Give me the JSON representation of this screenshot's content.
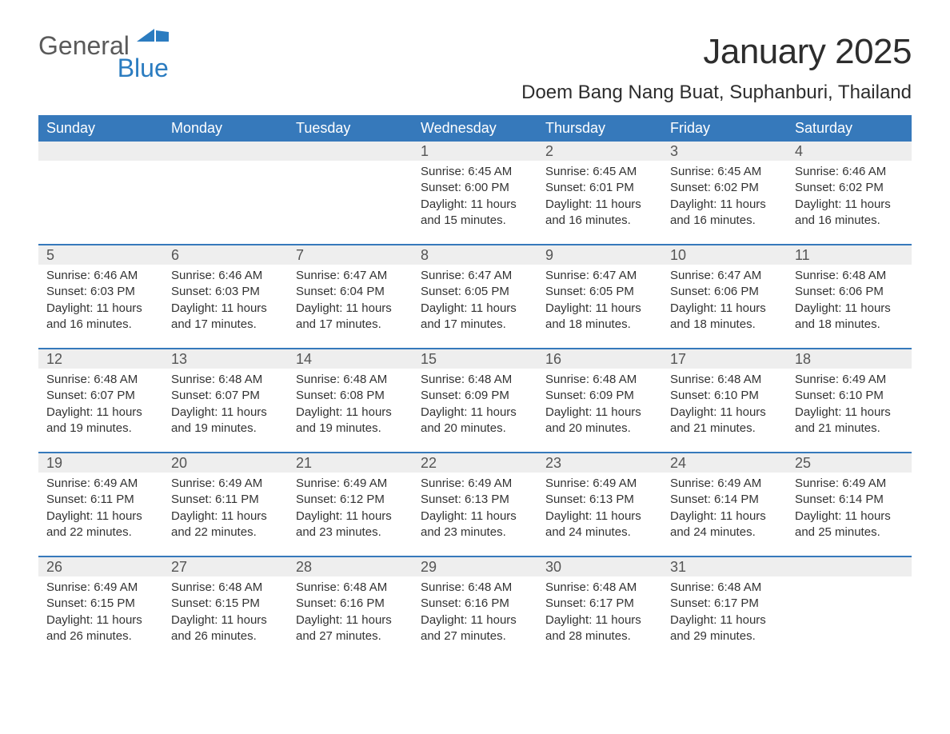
{
  "logo": {
    "word1": "General",
    "word2": "Blue",
    "accent_color": "#2b7cc0",
    "text_color": "#5a5a5a"
  },
  "title": "January 2025",
  "location": "Doem Bang Nang Buat, Suphanburi, Thailand",
  "colors": {
    "header_bg": "#3679bb",
    "header_text": "#ffffff",
    "daynum_bg": "#eeeeee",
    "week_border": "#3679bb",
    "body_text": "#333333",
    "daynum_text": "#555555",
    "background": "#ffffff"
  },
  "typography": {
    "title_fontsize": 44,
    "location_fontsize": 24,
    "dayhead_fontsize": 18,
    "daynum_fontsize": 18,
    "cell_fontsize": 15,
    "font_family": "Arial"
  },
  "layout": {
    "columns": 7,
    "rows": 5,
    "cell_min_height": 128
  },
  "day_headers": [
    "Sunday",
    "Monday",
    "Tuesday",
    "Wednesday",
    "Thursday",
    "Friday",
    "Saturday"
  ],
  "weeks": [
    [
      null,
      null,
      null,
      {
        "n": "1",
        "sunrise": "6:45 AM",
        "sunset": "6:00 PM",
        "daylight": "11 hours and 15 minutes."
      },
      {
        "n": "2",
        "sunrise": "6:45 AM",
        "sunset": "6:01 PM",
        "daylight": "11 hours and 16 minutes."
      },
      {
        "n": "3",
        "sunrise": "6:45 AM",
        "sunset": "6:02 PM",
        "daylight": "11 hours and 16 minutes."
      },
      {
        "n": "4",
        "sunrise": "6:46 AM",
        "sunset": "6:02 PM",
        "daylight": "11 hours and 16 minutes."
      }
    ],
    [
      {
        "n": "5",
        "sunrise": "6:46 AM",
        "sunset": "6:03 PM",
        "daylight": "11 hours and 16 minutes."
      },
      {
        "n": "6",
        "sunrise": "6:46 AM",
        "sunset": "6:03 PM",
        "daylight": "11 hours and 17 minutes."
      },
      {
        "n": "7",
        "sunrise": "6:47 AM",
        "sunset": "6:04 PM",
        "daylight": "11 hours and 17 minutes."
      },
      {
        "n": "8",
        "sunrise": "6:47 AM",
        "sunset": "6:05 PM",
        "daylight": "11 hours and 17 minutes."
      },
      {
        "n": "9",
        "sunrise": "6:47 AM",
        "sunset": "6:05 PM",
        "daylight": "11 hours and 18 minutes."
      },
      {
        "n": "10",
        "sunrise": "6:47 AM",
        "sunset": "6:06 PM",
        "daylight": "11 hours and 18 minutes."
      },
      {
        "n": "11",
        "sunrise": "6:48 AM",
        "sunset": "6:06 PM",
        "daylight": "11 hours and 18 minutes."
      }
    ],
    [
      {
        "n": "12",
        "sunrise": "6:48 AM",
        "sunset": "6:07 PM",
        "daylight": "11 hours and 19 minutes."
      },
      {
        "n": "13",
        "sunrise": "6:48 AM",
        "sunset": "6:07 PM",
        "daylight": "11 hours and 19 minutes."
      },
      {
        "n": "14",
        "sunrise": "6:48 AM",
        "sunset": "6:08 PM",
        "daylight": "11 hours and 19 minutes."
      },
      {
        "n": "15",
        "sunrise": "6:48 AM",
        "sunset": "6:09 PM",
        "daylight": "11 hours and 20 minutes."
      },
      {
        "n": "16",
        "sunrise": "6:48 AM",
        "sunset": "6:09 PM",
        "daylight": "11 hours and 20 minutes."
      },
      {
        "n": "17",
        "sunrise": "6:48 AM",
        "sunset": "6:10 PM",
        "daylight": "11 hours and 21 minutes."
      },
      {
        "n": "18",
        "sunrise": "6:49 AM",
        "sunset": "6:10 PM",
        "daylight": "11 hours and 21 minutes."
      }
    ],
    [
      {
        "n": "19",
        "sunrise": "6:49 AM",
        "sunset": "6:11 PM",
        "daylight": "11 hours and 22 minutes."
      },
      {
        "n": "20",
        "sunrise": "6:49 AM",
        "sunset": "6:11 PM",
        "daylight": "11 hours and 22 minutes."
      },
      {
        "n": "21",
        "sunrise": "6:49 AM",
        "sunset": "6:12 PM",
        "daylight": "11 hours and 23 minutes."
      },
      {
        "n": "22",
        "sunrise": "6:49 AM",
        "sunset": "6:13 PM",
        "daylight": "11 hours and 23 minutes."
      },
      {
        "n": "23",
        "sunrise": "6:49 AM",
        "sunset": "6:13 PM",
        "daylight": "11 hours and 24 minutes."
      },
      {
        "n": "24",
        "sunrise": "6:49 AM",
        "sunset": "6:14 PM",
        "daylight": "11 hours and 24 minutes."
      },
      {
        "n": "25",
        "sunrise": "6:49 AM",
        "sunset": "6:14 PM",
        "daylight": "11 hours and 25 minutes."
      }
    ],
    [
      {
        "n": "26",
        "sunrise": "6:49 AM",
        "sunset": "6:15 PM",
        "daylight": "11 hours and 26 minutes."
      },
      {
        "n": "27",
        "sunrise": "6:48 AM",
        "sunset": "6:15 PM",
        "daylight": "11 hours and 26 minutes."
      },
      {
        "n": "28",
        "sunrise": "6:48 AM",
        "sunset": "6:16 PM",
        "daylight": "11 hours and 27 minutes."
      },
      {
        "n": "29",
        "sunrise": "6:48 AM",
        "sunset": "6:16 PM",
        "daylight": "11 hours and 27 minutes."
      },
      {
        "n": "30",
        "sunrise": "6:48 AM",
        "sunset": "6:17 PM",
        "daylight": "11 hours and 28 minutes."
      },
      {
        "n": "31",
        "sunrise": "6:48 AM",
        "sunset": "6:17 PM",
        "daylight": "11 hours and 29 minutes."
      },
      null
    ]
  ],
  "labels": {
    "sunrise": "Sunrise:",
    "sunset": "Sunset:",
    "daylight": "Daylight:"
  }
}
